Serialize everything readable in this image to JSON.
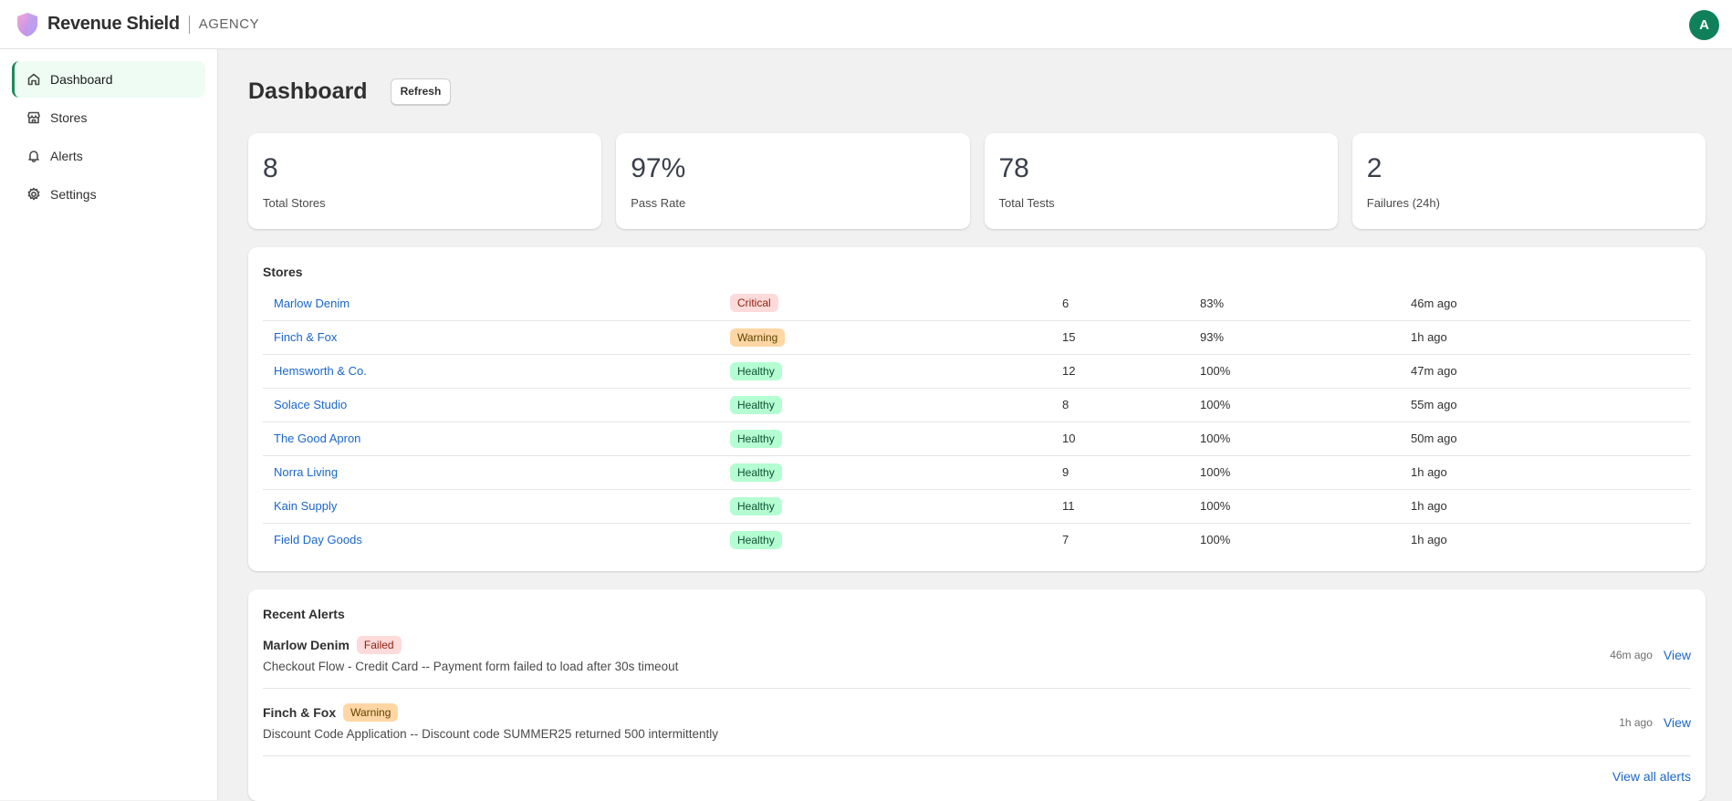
{
  "header": {
    "brand": "Revenue Shield",
    "brand_sub": "AGENCY",
    "avatar_initial": "A",
    "accent": "#10805b"
  },
  "sidebar": {
    "items": [
      {
        "label": "Dashboard",
        "icon": "home-icon",
        "active": true
      },
      {
        "label": "Stores",
        "icon": "store-icon"
      },
      {
        "label": "Alerts",
        "icon": "bell-icon"
      },
      {
        "label": "Settings",
        "icon": "gear-icon"
      }
    ]
  },
  "main": {
    "title": "Dashboard",
    "refresh_label": "Refresh",
    "stats": [
      {
        "value": "8",
        "label": "Total Stores"
      },
      {
        "value": "97%",
        "label": "Pass Rate"
      },
      {
        "value": "78",
        "label": "Total Tests"
      },
      {
        "value": "2",
        "label": "Failures (24h)"
      }
    ],
    "stores": {
      "title": "Stores",
      "rows": [
        {
          "name": "Marlow Denim",
          "status": "Critical",
          "tests": "6",
          "pass": "83%",
          "last": "46m ago"
        },
        {
          "name": "Finch & Fox",
          "status": "Warning",
          "tests": "15",
          "pass": "93%",
          "last": "1h ago"
        },
        {
          "name": "Hemsworth & Co.",
          "status": "Healthy",
          "tests": "12",
          "pass": "100%",
          "last": "47m ago"
        },
        {
          "name": "Solace Studio",
          "status": "Healthy",
          "tests": "8",
          "pass": "100%",
          "last": "55m ago"
        },
        {
          "name": "The Good Apron",
          "status": "Healthy",
          "tests": "10",
          "pass": "100%",
          "last": "50m ago"
        },
        {
          "name": "Norra Living",
          "status": "Healthy",
          "tests": "9",
          "pass": "100%",
          "last": "1h ago"
        },
        {
          "name": "Kain Supply",
          "status": "Healthy",
          "tests": "11",
          "pass": "100%",
          "last": "1h ago"
        },
        {
          "name": "Field Day Goods",
          "status": "Healthy",
          "tests": "7",
          "pass": "100%",
          "last": "1h ago"
        }
      ]
    },
    "alerts": {
      "title": "Recent Alerts",
      "items": [
        {
          "store": "Marlow Denim",
          "status": "Failed",
          "message": "Checkout Flow - Credit Card -- Payment form failed to load after 30s timeout",
          "time": "46m ago",
          "action": "View"
        },
        {
          "store": "Finch & Fox",
          "status": "Warning",
          "message": "Discount Code Application -- Discount code SUMMER25 returned 500 intermittently",
          "time": "1h ago",
          "action": "View"
        }
      ],
      "view_all": "View all alerts"
    }
  }
}
